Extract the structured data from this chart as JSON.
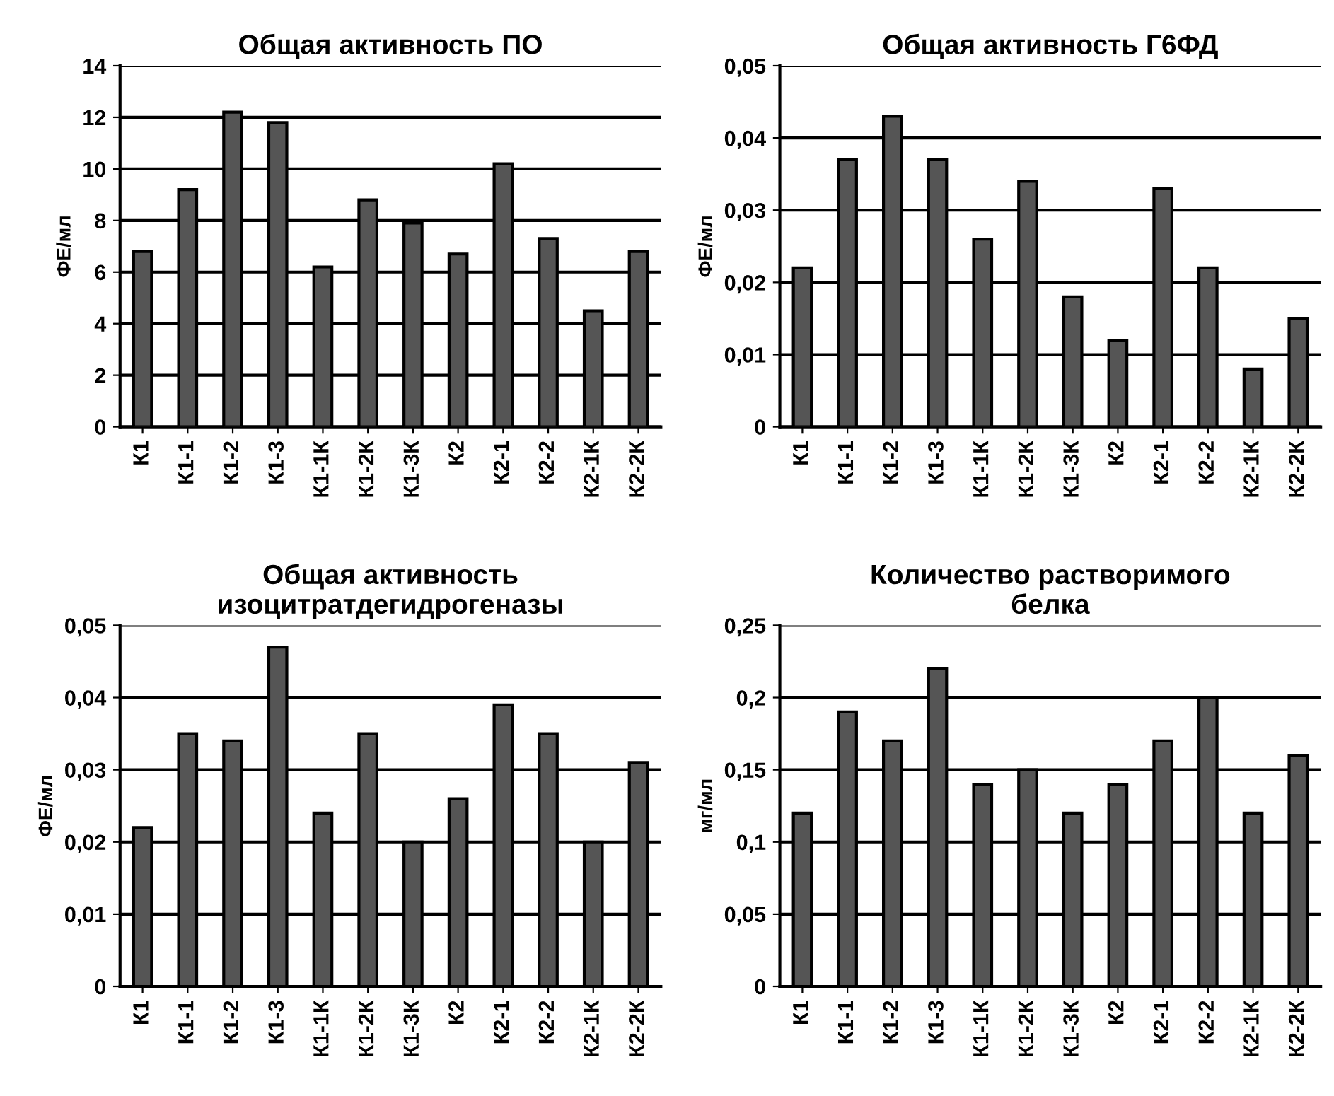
{
  "chart_data": [
    {
      "type": "bar",
      "title": "Общая активность ПО",
      "ylabel": "ФЕ/мл",
      "categories": [
        "К1",
        "К1-1",
        "К1-2",
        "К1-3",
        "К1-1К",
        "К1-2К",
        "К1-3К",
        "К2",
        "К2-1",
        "К2-2",
        "К2-1К",
        "К2-2К"
      ],
      "values": [
        6.8,
        9.2,
        12.2,
        11.8,
        6.2,
        8.8,
        7.9,
        6.7,
        10.2,
        7.3,
        4.5,
        6.8
      ],
      "color": "#555555",
      "ylim": [
        0,
        14
      ],
      "yticks": [
        0,
        2,
        4,
        6,
        8,
        10,
        12,
        14
      ],
      "grid": "y"
    },
    {
      "type": "bar",
      "title": "Общая активность Г6ФД",
      "ylabel": "ФЕ/мл",
      "categories": [
        "К1",
        "К1-1",
        "К1-2",
        "К1-3",
        "К1-1К",
        "К1-2К",
        "К1-3К",
        "К2",
        "К2-1",
        "К2-2",
        "К2-1К",
        "К2-2К"
      ],
      "values": [
        0.022,
        0.037,
        0.043,
        0.037,
        0.026,
        0.034,
        0.018,
        0.012,
        0.033,
        0.022,
        0.008,
        0.015
      ],
      "color": "#555555",
      "ylim": [
        0,
        0.05
      ],
      "yticks": [
        0,
        {
          "value": 0.01,
          "label": "0,01"
        },
        {
          "value": 0.02,
          "label": "0,02"
        },
        {
          "value": 0.03,
          "label": "0,03"
        },
        {
          "value": 0.04,
          "label": "0,04"
        },
        {
          "value": 0.05,
          "label": "0,05"
        }
      ],
      "grid": "y"
    },
    {
      "type": "bar",
      "title": "Общая активность\nизоцитратдегидрогеназы",
      "ylabel": "ФЕ/мл",
      "categories": [
        "К1",
        "К1-1",
        "К1-2",
        "К1-3",
        "К1-1К",
        "К1-2К",
        "К1-3К",
        "К2",
        "К2-1",
        "К2-2",
        "К2-1К",
        "К2-2К"
      ],
      "values": [
        0.022,
        0.035,
        0.034,
        0.047,
        0.024,
        0.035,
        0.02,
        0.026,
        0.039,
        0.035,
        0.02,
        0.031
      ],
      "color": "#555555",
      "ylim": [
        0,
        0.05
      ],
      "yticks": [
        0,
        {
          "value": 0.01,
          "label": "0,01"
        },
        {
          "value": 0.02,
          "label": "0,02"
        },
        {
          "value": 0.03,
          "label": "0,03"
        },
        {
          "value": 0.04,
          "label": "0,04"
        },
        {
          "value": 0.05,
          "label": "0,05"
        }
      ],
      "grid": "y"
    },
    {
      "type": "bar",
      "title": "Количество растворимого\nбелка",
      "ylabel": "мг/мл",
      "categories": [
        "К1",
        "К1-1",
        "К1-2",
        "К1-3",
        "К1-1К",
        "К1-2К",
        "К1-3К",
        "К2",
        "К2-1",
        "К2-2",
        "К2-1К",
        "К2-2К"
      ],
      "values": [
        0.12,
        0.19,
        0.17,
        0.22,
        0.14,
        0.15,
        0.12,
        0.14,
        0.17,
        0.2,
        0.12,
        0.16
      ],
      "color": "#555555",
      "ylim": [
        0,
        0.25
      ],
      "yticks": [
        0,
        {
          "value": 0.05,
          "label": "0,05"
        },
        {
          "value": 0.1,
          "label": "0,1"
        },
        {
          "value": 0.15,
          "label": "0,15"
        },
        {
          "value": 0.2,
          "label": "0,2"
        },
        {
          "value": 0.25,
          "label": "0,25"
        }
      ],
      "grid": "y"
    }
  ]
}
